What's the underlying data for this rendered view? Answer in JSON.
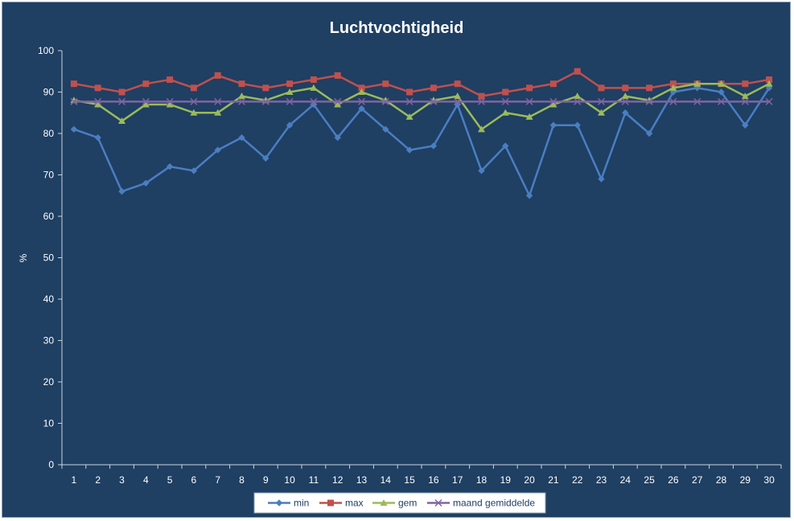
{
  "chart_data": {
    "type": "line",
    "title": "Luchtvochtigheid",
    "xlabel": "",
    "ylabel": "%",
    "ylim": [
      0,
      100
    ],
    "yticks": [
      0,
      10,
      20,
      30,
      40,
      50,
      60,
      70,
      80,
      90,
      100
    ],
    "categories": [
      "1",
      "2",
      "3",
      "4",
      "5",
      "6",
      "7",
      "8",
      "9",
      "10",
      "11",
      "12",
      "13",
      "14",
      "15",
      "16",
      "17",
      "18",
      "19",
      "20",
      "21",
      "22",
      "23",
      "24",
      "25",
      "26",
      "27",
      "28",
      "29",
      "30"
    ],
    "grid": false,
    "legend_position": "bottom",
    "series": [
      {
        "name": "min",
        "color": "#4a7ec2",
        "marker": "diamond",
        "values": [
          81,
          79,
          66,
          68,
          72,
          71,
          76,
          79,
          74,
          82,
          87,
          79,
          86,
          81,
          76,
          77,
          87,
          71,
          77,
          65,
          82,
          82,
          69,
          85,
          80,
          90,
          91,
          90,
          82,
          91
        ]
      },
      {
        "name": "max",
        "color": "#c0504d",
        "marker": "square",
        "values": [
          92,
          91,
          90,
          92,
          93,
          91,
          94,
          92,
          91,
          92,
          93,
          94,
          91,
          92,
          90,
          91,
          92,
          89,
          90,
          91,
          92,
          95,
          91,
          91,
          91,
          92,
          92,
          92,
          92,
          93
        ]
      },
      {
        "name": "gem",
        "color": "#9bbb59",
        "marker": "triangle",
        "values": [
          88,
          87,
          83,
          87,
          87,
          85,
          85,
          89,
          88,
          90,
          91,
          87,
          90,
          88,
          84,
          88,
          89,
          81,
          85,
          84,
          87,
          89,
          85,
          89,
          88,
          91,
          92,
          92,
          89,
          92
        ]
      },
      {
        "name": "maand gemiddelde",
        "color": "#8064a2",
        "marker": "x",
        "values": [
          87.7,
          87.7,
          87.7,
          87.7,
          87.7,
          87.7,
          87.7,
          87.7,
          87.7,
          87.7,
          87.7,
          87.7,
          87.7,
          87.7,
          87.7,
          87.7,
          87.7,
          87.7,
          87.7,
          87.7,
          87.7,
          87.7,
          87.7,
          87.7,
          87.7,
          87.7,
          87.7,
          87.7,
          87.7,
          87.7
        ]
      }
    ]
  }
}
